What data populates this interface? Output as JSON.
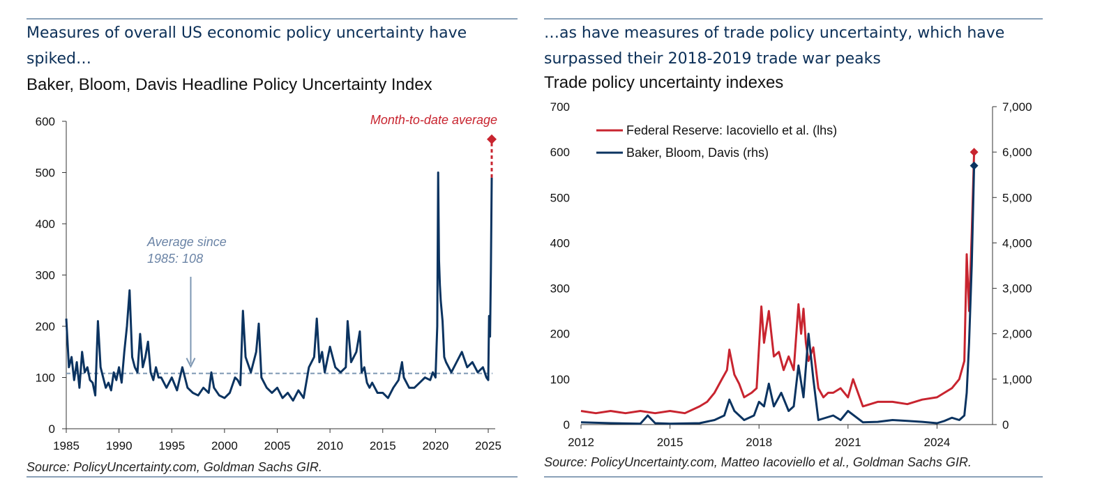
{
  "left": {
    "headline": "Measures of overall US economic policy uncertainty have spiked…",
    "subtitle": "Baker, Bloom, Davis Headline Policy Uncertainty Index",
    "source": "Source: PolicyUncertainty.com, Goldman Sachs GIR."
  },
  "right": {
    "headline": "…as have measures of trade policy uncertainty, which have surpassed their 2018-2019 trade war peaks",
    "subtitle": "Trade policy uncertainty indexes",
    "source": "Source: PolicyUncertainty.com, Matteo Iacoviello et al., Goldman Sachs GIR."
  },
  "colors": {
    "navy": "#0b3360",
    "red": "#c8242f",
    "avg": "#7d97b3",
    "rule": "#8aa1b8",
    "headline": "#0b2f57"
  },
  "chart_data": [
    {
      "type": "line",
      "title": "Baker, Bloom, Davis Headline Policy Uncertainty Index",
      "xlim": [
        1985,
        2026
      ],
      "ylim": [
        0,
        600
      ],
      "x_ticks": [
        1985,
        1990,
        1995,
        2000,
        2005,
        2010,
        2015,
        2020,
        2025
      ],
      "y_ticks": [
        0,
        100,
        200,
        300,
        400,
        500,
        600
      ],
      "grid": false,
      "series": [
        {
          "x": [
            1985.0,
            1985.25,
            1985.5,
            1985.75,
            1986.0,
            1986.25,
            1986.5,
            1986.75,
            1987.0,
            1987.25,
            1987.5,
            1987.75,
            1988.0,
            1988.25,
            1988.5,
            1988.75,
            1989.0,
            1989.25,
            1989.5,
            1989.75,
            1990.0,
            1990.25,
            1990.5,
            1990.75,
            1991.0,
            1991.25,
            1991.5,
            1991.75,
            1992.0,
            1992.25,
            1992.5,
            1992.75,
            1993.0,
            1993.25,
            1993.5,
            1993.75,
            1994.0,
            1994.5,
            1995.0,
            1995.5,
            1996.0,
            1996.5,
            1997.0,
            1997.5,
            1998.0,
            1998.5,
            1998.75,
            1999.0,
            1999.5,
            2000.0,
            2000.5,
            2001.0,
            2001.25,
            2001.5,
            2001.75,
            2002.0,
            2002.5,
            2003.0,
            2003.25,
            2003.5,
            2004.0,
            2004.5,
            2005.0,
            2005.5,
            2006.0,
            2006.5,
            2007.0,
            2007.5,
            2008.0,
            2008.5,
            2008.75,
            2009.0,
            2009.25,
            2009.5,
            2010.0,
            2010.5,
            2011.0,
            2011.5,
            2011.67,
            2012.0,
            2012.5,
            2012.83,
            2013.0,
            2013.25,
            2013.5,
            2013.75,
            2014.0,
            2014.5,
            2015.0,
            2015.5,
            2016.0,
            2016.5,
            2016.83,
            2017.0,
            2017.5,
            2018.0,
            2018.5,
            2019.0,
            2019.5,
            2019.75,
            2020.0,
            2020.17,
            2020.25,
            2020.33,
            2020.42,
            2020.5,
            2020.67,
            2020.83,
            2021.0,
            2021.5,
            2022.0,
            2022.5,
            2023.0,
            2023.5,
            2024.0,
            2024.5,
            2024.83,
            2025.0,
            2025.08,
            2025.17,
            2025.25,
            2025.33
          ],
          "y": [
            215,
            120,
            140,
            95,
            130,
            80,
            150,
            110,
            120,
            95,
            90,
            65,
            210,
            120,
            100,
            80,
            90,
            75,
            110,
            95,
            120,
            90,
            150,
            200,
            270,
            140,
            120,
            110,
            185,
            120,
            140,
            170,
            110,
            95,
            120,
            100,
            100,
            80,
            100,
            75,
            120,
            80,
            70,
            65,
            80,
            70,
            110,
            80,
            65,
            60,
            70,
            100,
            95,
            85,
            230,
            140,
            110,
            150,
            205,
            100,
            80,
            70,
            80,
            60,
            70,
            55,
            75,
            60,
            120,
            140,
            215,
            130,
            150,
            110,
            160,
            120,
            110,
            120,
            210,
            130,
            150,
            190,
            110,
            120,
            90,
            80,
            90,
            70,
            70,
            60,
            80,
            95,
            130,
            100,
            80,
            80,
            90,
            100,
            95,
            110,
            100,
            200,
            500,
            330,
            280,
            250,
            210,
            140,
            130,
            110,
            130,
            150,
            120,
            130,
            110,
            120,
            100,
            95,
            220,
            180,
            310,
            490
          ],
          "name": ""
        },
        {
          "x": [
            1985,
            2025.4
          ],
          "y": [
            108,
            108
          ],
          "name": ""
        },
        {
          "x": [
            2025.33,
            2025.33
          ],
          "y": [
            490,
            565
          ],
          "name": ""
        }
      ],
      "annotations": [
        {
          "text_lines": [
            "Average since",
            "1985: 108"
          ],
          "x": 1996.8,
          "y": 108
        },
        {
          "text": "Month-to-date average",
          "x": 2025.33,
          "y": 565
        }
      ]
    },
    {
      "type": "line",
      "title": "Trade policy uncertainty indexes",
      "xlim": [
        2012,
        2026
      ],
      "ylim_left": [
        0,
        700
      ],
      "ylim_right": [
        0,
        7000
      ],
      "x_ticks": [
        2012,
        2015,
        2018,
        2021,
        2024
      ],
      "y_ticks_left": [
        0,
        100,
        200,
        300,
        400,
        500,
        600,
        700
      ],
      "y_ticks_right": [
        "0",
        "1,000",
        "2,000",
        "3,000",
        "4,000",
        "5,000",
        "6,000",
        "7,000"
      ],
      "grid": false,
      "legend": "top-left",
      "series": [
        {
          "name": "Federal Reserve: Iacoviello et al. (lhs)",
          "axis": "left",
          "x": [
            2012.0,
            2012.5,
            2013.0,
            2013.5,
            2014.0,
            2014.5,
            2015.0,
            2015.5,
            2016.0,
            2016.25,
            2016.5,
            2016.75,
            2016.92,
            2017.0,
            2017.17,
            2017.33,
            2017.5,
            2017.75,
            2017.92,
            2018.08,
            2018.17,
            2018.33,
            2018.5,
            2018.67,
            2018.83,
            2019.0,
            2019.17,
            2019.33,
            2019.42,
            2019.5,
            2019.58,
            2019.67,
            2019.83,
            2020.0,
            2020.17,
            2020.33,
            2020.5,
            2020.75,
            2021.0,
            2021.17,
            2021.5,
            2022.0,
            2022.5,
            2023.0,
            2023.5,
            2024.0,
            2024.5,
            2024.75,
            2024.92,
            2025.0,
            2025.08,
            2025.17,
            2025.25
          ],
          "y": [
            30,
            25,
            30,
            25,
            30,
            25,
            30,
            25,
            40,
            50,
            70,
            100,
            120,
            165,
            110,
            90,
            60,
            70,
            80,
            260,
            180,
            250,
            150,
            160,
            120,
            150,
            120,
            265,
            200,
            255,
            180,
            140,
            170,
            80,
            60,
            70,
            70,
            80,
            60,
            100,
            40,
            50,
            50,
            45,
            55,
            60,
            80,
            100,
            140,
            375,
            250,
            420,
            600
          ],
          "values": [
            30,
            25,
            30,
            25,
            30,
            25,
            30,
            25,
            40,
            50,
            70,
            100,
            120,
            165,
            110,
            90,
            60,
            70,
            80,
            260,
            180,
            250,
            150,
            160,
            120,
            150,
            120,
            265,
            200,
            255,
            180,
            140,
            170,
            80,
            60,
            70,
            70,
            80,
            60,
            100,
            40,
            50,
            50,
            45,
            55,
            60,
            80,
            100,
            140,
            375,
            250,
            420,
            600
          ]
        },
        {
          "name": "Baker, Bloom, Davis (rhs)",
          "axis": "right",
          "x": [
            2012.0,
            2013.0,
            2014.0,
            2014.25,
            2014.5,
            2015.0,
            2016.0,
            2016.5,
            2016.83,
            2017.0,
            2017.17,
            2017.5,
            2017.83,
            2018.0,
            2018.17,
            2018.33,
            2018.5,
            2018.75,
            2019.0,
            2019.17,
            2019.33,
            2019.5,
            2019.67,
            2019.83,
            2020.0,
            2020.5,
            2020.75,
            2021.0,
            2021.5,
            2022.0,
            2022.5,
            2023.0,
            2023.5,
            2024.0,
            2024.25,
            2024.5,
            2024.75,
            2024.92,
            2025.0,
            2025.08,
            2025.17,
            2025.25
          ],
          "y": [
            50,
            30,
            20,
            200,
            30,
            20,
            30,
            100,
            200,
            550,
            300,
            100,
            200,
            500,
            400,
            900,
            400,
            700,
            300,
            400,
            1300,
            600,
            2000,
            1000,
            100,
            200,
            100,
            300,
            50,
            60,
            100,
            80,
            60,
            30,
            80,
            150,
            100,
            200,
            700,
            1800,
            3500,
            5700
          ],
          "values": [
            50,
            30,
            20,
            200,
            30,
            20,
            30,
            100,
            200,
            550,
            300,
            100,
            200,
            500,
            400,
            900,
            400,
            700,
            300,
            400,
            1300,
            600,
            2000,
            1000,
            100,
            200,
            100,
            300,
            50,
            60,
            100,
            80,
            60,
            30,
            80,
            150,
            100,
            200,
            700,
            1800,
            3500,
            5700
          ]
        }
      ]
    }
  ]
}
